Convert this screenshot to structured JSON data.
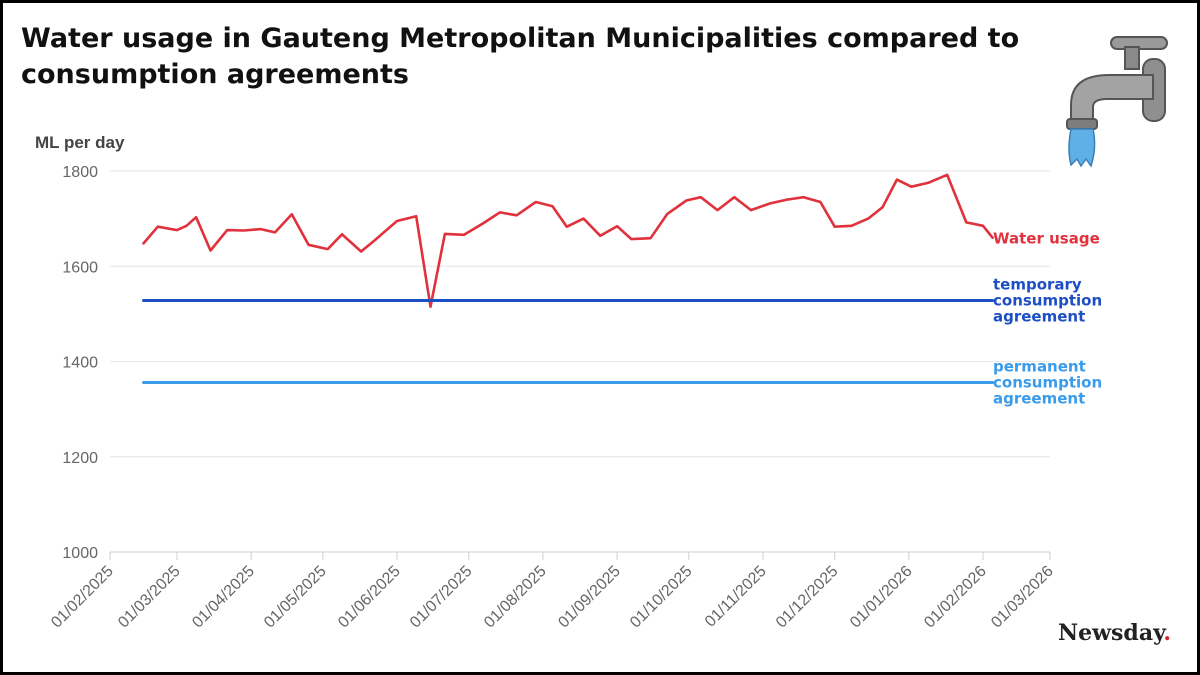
{
  "header": {
    "title": "Water usage in Gauteng Metropolitan Municipalities compared to consumption agreements"
  },
  "brand": {
    "name": "Newsday",
    "dot": ".",
    "dot_color": "#d6202c"
  },
  "icons": {
    "tap": "water-tap-icon"
  },
  "chart_data": {
    "type": "line",
    "title": "Water usage in Gauteng Metropolitan Municipalities compared to consumption agreements",
    "ylabel": "ML per day",
    "xlabel": "",
    "ylim": [
      1000,
      1800
    ],
    "yticks": [
      1000,
      1200,
      1400,
      1600,
      1800
    ],
    "xlim": [
      "2025-02-01",
      "2026-03-01"
    ],
    "xticks": [
      "01/02/2025",
      "01/03/2025",
      "01/04/2025",
      "01/05/2025",
      "01/06/2025",
      "01/07/2025",
      "01/08/2025",
      "01/09/2025",
      "01/10/2025",
      "01/11/2025",
      "01/12/2025",
      "01/01/2026",
      "01/02/2026",
      "01/03/2026"
    ],
    "xtick_dates": [
      "2025-02-01",
      "2025-03-01",
      "2025-04-01",
      "2025-05-01",
      "2025-06-01",
      "2025-07-01",
      "2025-08-01",
      "2025-09-01",
      "2025-10-01",
      "2025-11-01",
      "2025-12-01",
      "2026-01-01",
      "2026-02-01",
      "2026-03-01"
    ],
    "grid": true,
    "series": [
      {
        "name": "Water usage",
        "color": "#e0313c",
        "points": [
          [
            "2025-02-15",
            1648
          ],
          [
            "2025-02-21",
            1683
          ],
          [
            "2025-03-01",
            1676
          ],
          [
            "2025-03-05",
            1685
          ],
          [
            "2025-03-09",
            1703
          ],
          [
            "2025-03-15",
            1633
          ],
          [
            "2025-03-22",
            1676
          ],
          [
            "2025-03-29",
            1675
          ],
          [
            "2025-04-05",
            1678
          ],
          [
            "2025-04-11",
            1671
          ],
          [
            "2025-04-18",
            1709
          ],
          [
            "2025-04-25",
            1645
          ],
          [
            "2025-05-03",
            1636
          ],
          [
            "2025-05-09",
            1667
          ],
          [
            "2025-05-17",
            1631
          ],
          [
            "2025-05-23",
            1656
          ],
          [
            "2025-06-01",
            1695
          ],
          [
            "2025-06-09",
            1705
          ],
          [
            "2025-06-15",
            1515
          ],
          [
            "2025-06-21",
            1668
          ],
          [
            "2025-06-29",
            1666
          ],
          [
            "2025-07-07",
            1690
          ],
          [
            "2025-07-14",
            1713
          ],
          [
            "2025-07-21",
            1707
          ],
          [
            "2025-07-29",
            1735
          ],
          [
            "2025-08-05",
            1726
          ],
          [
            "2025-08-11",
            1683
          ],
          [
            "2025-08-18",
            1700
          ],
          [
            "2025-08-25",
            1664
          ],
          [
            "2025-09-01",
            1684
          ],
          [
            "2025-09-07",
            1657
          ],
          [
            "2025-09-15",
            1659
          ],
          [
            "2025-09-22",
            1710
          ],
          [
            "2025-09-30",
            1738
          ],
          [
            "2025-10-06",
            1745
          ],
          [
            "2025-10-13",
            1718
          ],
          [
            "2025-10-20",
            1745
          ],
          [
            "2025-10-27",
            1718
          ],
          [
            "2025-11-04",
            1732
          ],
          [
            "2025-11-11",
            1740
          ],
          [
            "2025-11-18",
            1745
          ],
          [
            "2025-11-25",
            1735
          ],
          [
            "2025-12-01",
            1683
          ],
          [
            "2025-12-08",
            1685
          ],
          [
            "2025-12-15",
            1700
          ],
          [
            "2025-12-21",
            1724
          ],
          [
            "2025-12-27",
            1782
          ],
          [
            "2026-01-02",
            1767
          ],
          [
            "2026-01-09",
            1775
          ],
          [
            "2026-01-17",
            1792
          ],
          [
            "2026-01-25",
            1692
          ],
          [
            "2026-02-01",
            1685
          ],
          [
            "2026-02-05",
            1660
          ]
        ]
      },
      {
        "name": "temporary consumption agreement",
        "label_lines": [
          "temporary",
          "consumption",
          "agreement"
        ],
        "color": "#1d4fc4",
        "points": [
          [
            "2025-02-15",
            1528
          ],
          [
            "2026-02-05",
            1528
          ]
        ]
      },
      {
        "name": "permanent consumption agreement",
        "label_lines": [
          "permanent",
          "consumption",
          "agreement"
        ],
        "color": "#3a9bea",
        "points": [
          [
            "2025-02-15",
            1356
          ],
          [
            "2026-02-05",
            1356
          ]
        ]
      }
    ]
  }
}
